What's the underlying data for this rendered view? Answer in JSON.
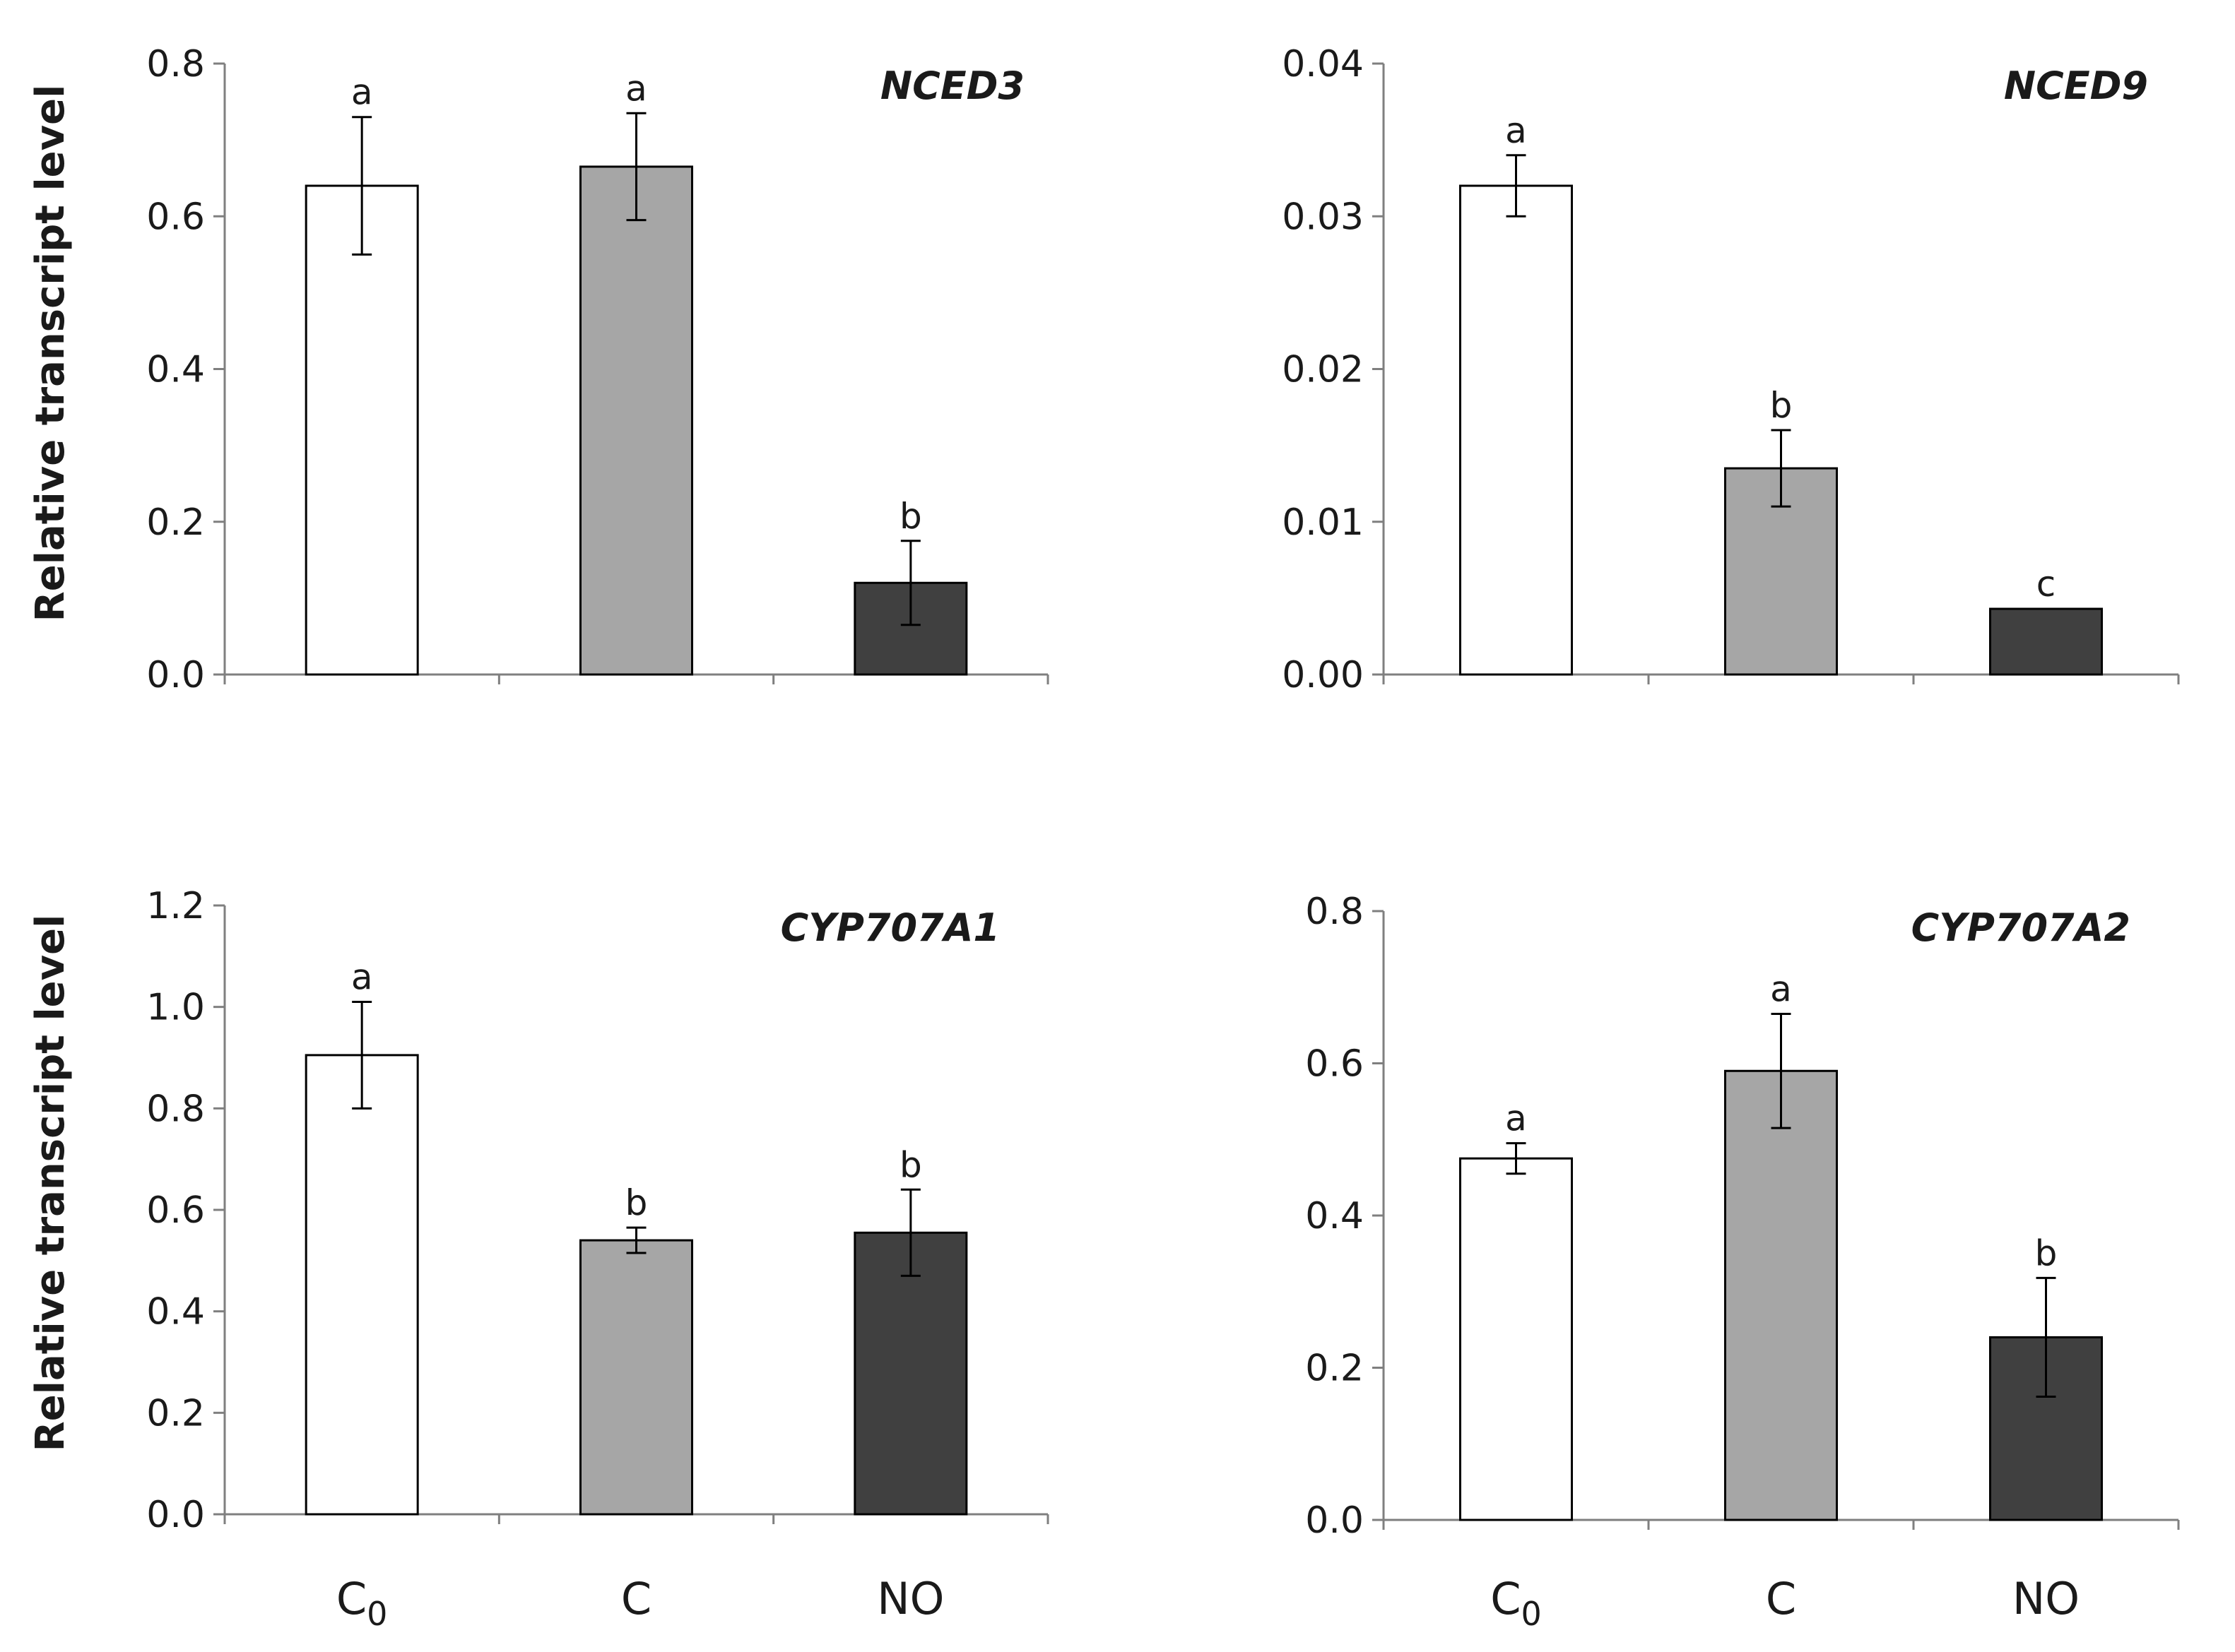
{
  "figure": {
    "categories": [
      "C0",
      "C",
      "NO"
    ],
    "category_colors": [
      "#ffffff",
      "#a6a6a6",
      "#404040"
    ],
    "ylabel": "Relative transcript level"
  },
  "chart_data": [
    {
      "type": "bar",
      "title": "NCED3",
      "ylabel": "Relative transcript level",
      "categories": [
        "C0",
        "C",
        "NO"
      ],
      "ylim": [
        0,
        0.8
      ],
      "ytick_labels": [
        "0.0",
        "0.2",
        "0.4",
        "0.6",
        "0.8"
      ],
      "values": [
        0.64,
        0.665,
        0.12
      ],
      "errors": [
        0.09,
        0.07,
        0.055
      ],
      "significance": [
        "a",
        "a",
        "b"
      ]
    },
    {
      "type": "bar",
      "title": "NCED9",
      "ylabel": "",
      "categories": [
        "C0",
        "C",
        "NO"
      ],
      "ylim": [
        0,
        0.04
      ],
      "ytick_labels": [
        "0.00",
        "0.01",
        "0.02",
        "0.03",
        "0.04"
      ],
      "values": [
        0.032,
        0.0135,
        0.0043
      ],
      "errors": [
        0.002,
        0.0025,
        0
      ],
      "significance": [
        "a",
        "b",
        "c"
      ]
    },
    {
      "type": "bar",
      "title": "CYP707A1",
      "ylabel": "Relative transcript level",
      "categories": [
        "C0",
        "C",
        "NO"
      ],
      "ylim": [
        0,
        1.2
      ],
      "ytick_labels": [
        "0.0",
        "0.2",
        "0.4",
        "0.6",
        "0.8",
        "1.0",
        "1.2"
      ],
      "values": [
        0.905,
        0.54,
        0.555
      ],
      "errors": [
        0.105,
        0.025,
        0.085
      ],
      "significance": [
        "a",
        "b",
        "b"
      ]
    },
    {
      "type": "bar",
      "title": "CYP707A2",
      "ylabel": "",
      "categories": [
        "C0",
        "C",
        "NO"
      ],
      "ylim": [
        0,
        0.8
      ],
      "ytick_labels": [
        "0.0",
        "0.2",
        "0.4",
        "0.6",
        "0.8"
      ],
      "values": [
        0.475,
        0.59,
        0.24
      ],
      "errors": [
        0.02,
        0.075,
        0.078
      ],
      "significance": [
        "a",
        "a",
        "b"
      ]
    }
  ]
}
